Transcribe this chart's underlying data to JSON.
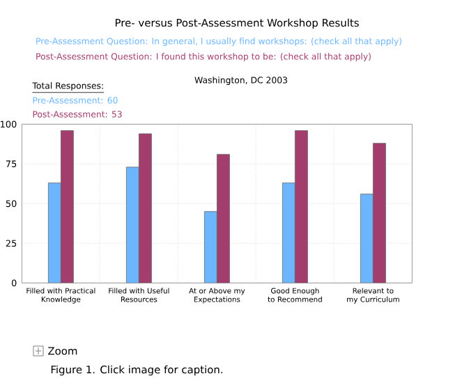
{
  "chart_data": {
    "type": "bar",
    "title": "Pre- versus Post-Assessment Workshop Results",
    "subtitle": "Washington, DC 2003",
    "categories": [
      "Filled with Practical Knowledge",
      "Filled with Useful Resources",
      "At or Above my Expectations",
      "Good Enough to Recommend",
      "Relevant to my Curriculum"
    ],
    "series": [
      {
        "name": "Pre-Assessment Question: In general, I usually find workshops: (check all that apply)",
        "color": "#6cb6ff",
        "values": [
          63,
          73,
          45,
          63,
          56
        ]
      },
      {
        "name": "Post-Assessment Question: I found this workshop to be: (check all that apply)",
        "color": "#a33d6e",
        "values": [
          96,
          94,
          81,
          96,
          88
        ]
      }
    ],
    "annotations": [
      "Total Responses:",
      "Pre-Assessment: 60",
      "Post-Assessment: 53",
      "Zoom",
      "Figure 1.  Click image for caption."
    ],
    "ylim": [
      0,
      100
    ],
    "yticks": [
      0,
      25,
      50,
      75,
      100
    ],
    "grid": true,
    "legend": false
  }
}
